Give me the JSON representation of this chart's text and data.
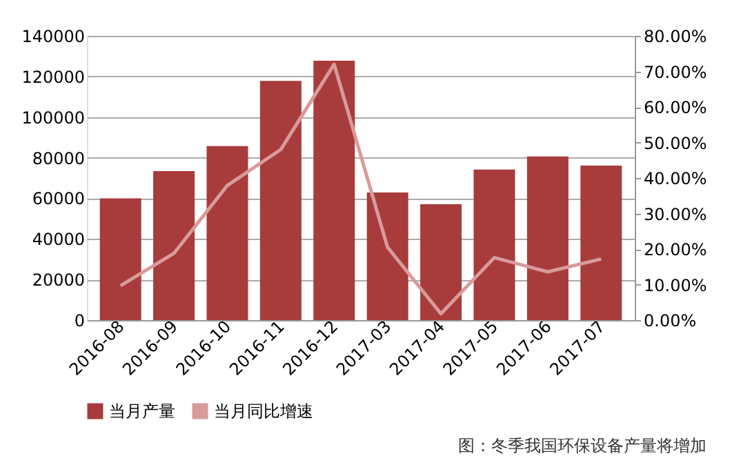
{
  "chart_data": {
    "type": "bar",
    "categories": [
      "2016-08",
      "2016-09",
      "2016-10",
      "2016-11",
      "2016-12",
      "2017-03",
      "2017-04",
      "2017-05",
      "2017-06",
      "2017-07"
    ],
    "series": [
      {
        "name": "当月产量",
        "color": "#a83b3b",
        "values": [
          60000,
          73400,
          85700,
          117800,
          127800,
          62900,
          57100,
          74200,
          80600,
          76100
        ]
      },
      {
        "name": "当月同比增速",
        "type": "line",
        "axis": "y2",
        "color": "#d99a9a",
        "values": [
          9.7,
          18.8,
          37.9,
          48.0,
          72.0,
          20.5,
          1.8,
          17.6,
          13.6,
          17.2
        ]
      }
    ],
    "ylim": [
      0,
      140000
    ],
    "yticks": [
      0,
      20000,
      40000,
      60000,
      80000,
      100000,
      120000,
      140000
    ],
    "y2lim": [
      0,
      80
    ],
    "y2ticks": [
      {
        "value": 0,
        "label": "0.00%"
      },
      {
        "value": 10,
        "label": "10.00%"
      },
      {
        "value": 20,
        "label": "20.00%"
      },
      {
        "value": 30,
        "label": "30.00%"
      },
      {
        "value": 40,
        "label": "40.00%"
      },
      {
        "value": 50,
        "label": "50.00%"
      },
      {
        "value": 60,
        "label": "60.00%"
      },
      {
        "value": 70,
        "label": "70.00%"
      },
      {
        "value": 80,
        "label": "80.00%"
      }
    ],
    "grid": "y",
    "legend": "bottom",
    "line_style": "solid",
    "marker": "none",
    "annotations": [
      "图：冬季我国环保设备产量将增加"
    ]
  }
}
